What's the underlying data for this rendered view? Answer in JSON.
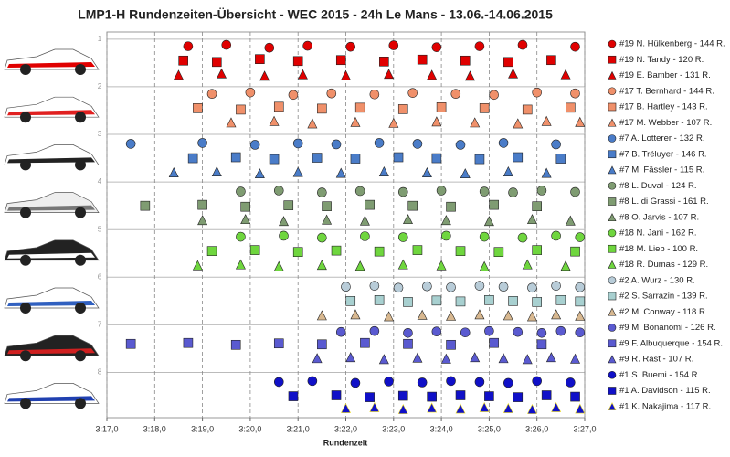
{
  "chart_data": {
    "type": "scatter",
    "title": "LMP1-H Rundenzeiten-Übersicht - WEC 2015  - 24h Le Mans - 13.06.-14.06.2015",
    "x_label": "Rundenzeit",
    "xlim": [
      197,
      207
    ],
    "ylim": [
      0.85,
      8.95
    ],
    "xticks": [
      {
        "value": 197,
        "label": "3:17,0"
      },
      {
        "value": 198,
        "label": "3:18,0"
      },
      {
        "value": 199,
        "label": "3:19,0"
      },
      {
        "value": 200,
        "label": "3:20,0"
      },
      {
        "value": 201,
        "label": "3:21,0"
      },
      {
        "value": 202,
        "label": "3:22,0"
      },
      {
        "value": 203,
        "label": "3:23,0"
      },
      {
        "value": 204,
        "label": "3:24,0"
      },
      {
        "value": 205,
        "label": "3:25,0"
      },
      {
        "value": 206,
        "label": "3:26,0"
      },
      {
        "value": 207,
        "label": "3:27,0"
      }
    ],
    "yticks": [
      1,
      2,
      3,
      4,
      5,
      6,
      7,
      8
    ],
    "grid": true,
    "y_reversed": true,
    "legend": "right",
    "series": [
      {
        "name": "#19 N. Hülkenberg - 144 R.",
        "color": "#e00000",
        "marker": "circle",
        "x": [
          198.7,
          199.5,
          200.4,
          201.2,
          202.1,
          203.0,
          203.9,
          204.8,
          205.7,
          206.8
        ],
        "values": [
          1.15,
          1.12,
          1.18,
          1.14,
          1.16,
          1.13,
          1.17,
          1.15,
          1.12,
          1.16
        ]
      },
      {
        "name": "#19 N. Tandy - 120 R.",
        "color": "#e00000",
        "marker": "square",
        "x": [
          198.6,
          199.3,
          200.2,
          201.0,
          201.9,
          202.8,
          203.6,
          204.5,
          205.4,
          206.3
        ],
        "values": [
          1.45,
          1.48,
          1.42,
          1.46,
          1.44,
          1.47,
          1.43,
          1.45,
          1.48,
          1.44
        ]
      },
      {
        "name": "#19 E. Bamber - 131 R.",
        "color": "#e00000",
        "marker": "triangle",
        "x": [
          198.5,
          199.4,
          200.3,
          201.1,
          202.0,
          202.9,
          203.8,
          204.6,
          205.5,
          206.6
        ],
        "values": [
          1.75,
          1.72,
          1.77,
          1.74,
          1.76,
          1.73,
          1.75,
          1.77,
          1.72,
          1.74
        ]
      },
      {
        "name": "#17 T. Bernhard - 144 R.",
        "color": "#f0906a",
        "marker": "circle",
        "x": [
          199.2,
          200.0,
          200.9,
          201.7,
          202.6,
          203.4,
          204.3,
          205.1,
          206.0,
          206.8
        ],
        "values": [
          2.15,
          2.12,
          2.17,
          2.14,
          2.16,
          2.13,
          2.15,
          2.17,
          2.12,
          2.14
        ]
      },
      {
        "name": "#17 B. Hartley - 143 R.",
        "color": "#f0906a",
        "marker": "square",
        "x": [
          198.9,
          199.8,
          200.6,
          201.5,
          202.3,
          203.2,
          204.0,
          204.9,
          205.8,
          206.7
        ],
        "values": [
          2.45,
          2.48,
          2.42,
          2.46,
          2.44,
          2.47,
          2.43,
          2.45,
          2.48,
          2.44
        ]
      },
      {
        "name": "#17 M. Webber - 107 R.",
        "color": "#f0906a",
        "marker": "triangle",
        "x": [
          199.6,
          200.5,
          201.3,
          202.2,
          203.0,
          203.9,
          204.7,
          205.6,
          206.2,
          206.9
        ],
        "values": [
          2.75,
          2.72,
          2.77,
          2.74,
          2.76,
          2.73,
          2.75,
          2.77,
          2.72,
          2.74
        ]
      },
      {
        "name": "#7 A. Lotterer - 132 R.",
        "color": "#4a7cc8",
        "marker": "circle",
        "x": [
          197.5,
          199.0,
          200.1,
          201.0,
          201.8,
          202.7,
          203.5,
          204.4,
          205.3,
          206.4
        ],
        "values": [
          3.2,
          3.18,
          3.22,
          3.19,
          3.21,
          3.18,
          3.2,
          3.22,
          3.18,
          3.21
        ]
      },
      {
        "name": "#7 B. Tréluyer - 146 R.",
        "color": "#4a7cc8",
        "marker": "square",
        "x": [
          198.8,
          199.7,
          200.5,
          201.4,
          202.2,
          203.1,
          203.9,
          204.8,
          205.6,
          206.5
        ],
        "values": [
          3.5,
          3.48,
          3.52,
          3.49,
          3.51,
          3.48,
          3.5,
          3.52,
          3.48,
          3.51
        ]
      },
      {
        "name": "#7 M. Fässler - 115 R.",
        "color": "#4a7cc8",
        "marker": "triangle",
        "x": [
          198.4,
          199.3,
          200.2,
          201.0,
          201.9,
          202.8,
          203.7,
          204.5,
          205.4,
          206.2
        ],
        "values": [
          3.8,
          3.78,
          3.82,
          3.79,
          3.81,
          3.78,
          3.8,
          3.82,
          3.78,
          3.81
        ]
      },
      {
        "name": "#8 L. Duval - 124 R.",
        "color": "#7f9c72",
        "marker": "circle",
        "x": [
          199.8,
          200.6,
          201.5,
          202.3,
          203.2,
          204.0,
          204.9,
          205.5,
          206.1,
          206.8
        ],
        "values": [
          4.2,
          4.18,
          4.22,
          4.19,
          4.21,
          4.18,
          4.2,
          4.22,
          4.18,
          4.21
        ]
      },
      {
        "name": "#8 L. di Grassi - 161 R.",
        "color": "#7f9c72",
        "marker": "square",
        "x": [
          197.8,
          199.0,
          199.9,
          200.8,
          201.6,
          202.5,
          203.4,
          204.2,
          205.1,
          206.0
        ],
        "values": [
          4.5,
          4.48,
          4.52,
          4.49,
          4.51,
          4.48,
          4.5,
          4.52,
          4.48,
          4.51
        ]
      },
      {
        "name": "#8 O. Jarvis - 107 R.",
        "color": "#7f9c72",
        "marker": "triangle",
        "x": [
          199.0,
          199.9,
          200.7,
          201.6,
          202.4,
          203.3,
          204.1,
          205.0,
          205.9,
          206.7
        ],
        "values": [
          4.8,
          4.78,
          4.82,
          4.79,
          4.81,
          4.78,
          4.8,
          4.82,
          4.78,
          4.81
        ]
      },
      {
        "name": "#18 N. Jani - 162 R.",
        "color": "#6fd63e",
        "marker": "circle",
        "x": [
          199.8,
          200.7,
          201.5,
          202.4,
          203.2,
          204.1,
          204.9,
          205.7,
          206.4,
          206.9
        ],
        "values": [
          5.15,
          5.13,
          5.17,
          5.14,
          5.16,
          5.13,
          5.15,
          5.17,
          5.13,
          5.16
        ]
      },
      {
        "name": "#18 M. Lieb - 100 R.",
        "color": "#6fd63e",
        "marker": "square",
        "x": [
          199.2,
          200.1,
          201.0,
          201.8,
          202.7,
          203.5,
          204.4,
          205.2,
          206.0,
          206.8
        ],
        "values": [
          5.45,
          5.43,
          5.47,
          5.44,
          5.46,
          5.43,
          5.45,
          5.47,
          5.43,
          5.46
        ]
      },
      {
        "name": "#18 R. Dumas - 129 R.",
        "color": "#6fd63e",
        "marker": "triangle",
        "x": [
          198.9,
          199.8,
          200.6,
          201.5,
          202.3,
          203.2,
          204.0,
          204.9,
          205.8,
          206.6
        ],
        "values": [
          5.75,
          5.73,
          5.77,
          5.74,
          5.76,
          5.73,
          5.75,
          5.77,
          5.73,
          5.76
        ]
      },
      {
        "name": "#2 A. Wurz - 130 R.",
        "color": "#b8ccd8",
        "marker": "circle",
        "x": [
          202.0,
          202.6,
          203.1,
          203.7,
          204.2,
          204.8,
          205.3,
          205.9,
          206.4,
          206.9
        ],
        "values": [
          6.2,
          6.18,
          6.22,
          6.19,
          6.21,
          6.18,
          6.2,
          6.22,
          6.18,
          6.21
        ]
      },
      {
        "name": "#2 S. Sarrazin - 139 R.",
        "color": "#a8d0d0",
        "marker": "square",
        "x": [
          202.1,
          202.7,
          203.3,
          203.9,
          204.4,
          205.0,
          205.5,
          206.0,
          206.5,
          206.9
        ],
        "values": [
          6.5,
          6.48,
          6.52,
          6.49,
          6.51,
          6.48,
          6.5,
          6.52,
          6.48,
          6.51
        ]
      },
      {
        "name": "#2 M. Conway - 118 R.",
        "color": "#d8b890",
        "marker": "triangle",
        "x": [
          201.5,
          202.2,
          202.9,
          203.6,
          204.2,
          204.8,
          205.4,
          205.9,
          206.4,
          206.9
        ],
        "values": [
          6.8,
          6.78,
          6.82,
          6.79,
          6.81,
          6.78,
          6.8,
          6.82,
          6.78,
          6.81
        ]
      },
      {
        "name": "#9 M. Bonanomi - 126 R.",
        "color": "#5a5ad0",
        "marker": "circle",
        "x": [
          201.9,
          202.6,
          203.3,
          203.9,
          204.5,
          205.0,
          205.6,
          206.1,
          206.5,
          206.9
        ],
        "values": [
          7.15,
          7.13,
          7.17,
          7.14,
          7.16,
          7.13,
          7.15,
          7.17,
          7.13,
          7.16
        ]
      },
      {
        "name": "#9 F. Albuquerque - 154 R.",
        "color": "#5a5ad0",
        "marker": "square",
        "x": [
          197.5,
          198.7,
          199.7,
          200.6,
          201.5,
          202.4,
          203.3,
          204.2,
          205.1,
          206.1
        ],
        "values": [
          7.4,
          7.38,
          7.42,
          7.39,
          7.41,
          7.38,
          7.4,
          7.42,
          7.38,
          7.41
        ]
      },
      {
        "name": "#9 R. Rast - 107 R.",
        "color": "#5a5ad0",
        "marker": "triangle",
        "x": [
          201.4,
          202.1,
          202.8,
          203.5,
          204.1,
          204.7,
          205.3,
          205.8,
          206.3,
          206.8
        ],
        "values": [
          7.7,
          7.68,
          7.72,
          7.69,
          7.71,
          7.68,
          7.7,
          7.72,
          7.68,
          7.71
        ]
      },
      {
        "name": "#1 S. Buemi - 154 R.",
        "color": "#1010c8",
        "marker": "circle",
        "x": [
          200.6,
          201.3,
          202.2,
          202.9,
          203.6,
          204.2,
          204.8,
          205.4,
          206.0,
          206.7
        ],
        "values": [
          8.2,
          8.18,
          8.22,
          8.19,
          8.21,
          8.18,
          8.2,
          8.22,
          8.18,
          8.21
        ]
      },
      {
        "name": "#1 A. Davidson - 115 R.",
        "color": "#1010c8",
        "marker": "square",
        "x": [
          200.9,
          201.8,
          202.5,
          203.2,
          203.8,
          204.4,
          205.0,
          205.6,
          206.2,
          206.8
        ],
        "values": [
          8.5,
          8.48,
          8.52,
          8.49,
          8.51,
          8.48,
          8.5,
          8.52,
          8.48,
          8.51
        ]
      },
      {
        "name": "#1 K. Nakajima - 117 R.",
        "color": "#1010c8",
        "marker": "triangle",
        "edge": "#f0e020",
        "x": [
          202.0,
          202.6,
          203.2,
          203.8,
          204.4,
          204.9,
          205.4,
          205.9,
          206.4,
          206.9
        ],
        "values": [
          8.75,
          8.73,
          8.77,
          8.74,
          8.76,
          8.73,
          8.75,
          8.77,
          8.73,
          8.76
        ]
      }
    ]
  }
}
